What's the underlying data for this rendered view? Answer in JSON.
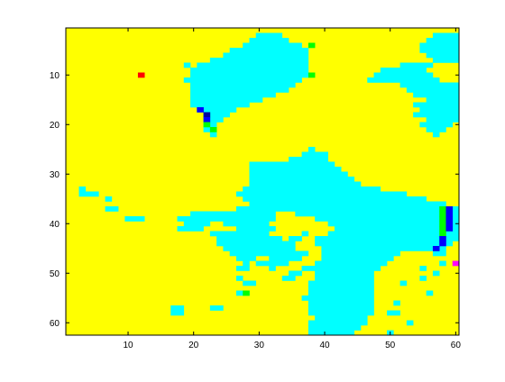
{
  "chart_data": {
    "type": "heatmap",
    "title": "",
    "xlabel": "",
    "ylabel": "",
    "xlim": [
      0.5,
      60.5
    ],
    "ylim": [
      0.5,
      62.5
    ],
    "y_direction": "reversed",
    "grid": false,
    "legend": "none",
    "x_ticks": [
      10,
      20,
      30,
      40,
      50,
      60
    ],
    "y_ticks": [
      10,
      20,
      30,
      40,
      50,
      60
    ],
    "x_tick_labels": [
      "10",
      "20",
      "30",
      "40",
      "50",
      "60"
    ],
    "y_tick_labels": [
      "10",
      "20",
      "30",
      "40",
      "50",
      "60"
    ],
    "colors": {
      "background": "#ffff00",
      "region": "#00ffff",
      "green": "#00ff00",
      "blue": "#0000ff",
      "darkblue": "#0000a0",
      "red": "#ff0000",
      "magenta": "#ff00ff",
      "frame": "#000000"
    },
    "base_value": "yellow",
    "region_value": "cyan",
    "region_rows": [
      {
        "y": 2,
        "runs": [
          [
            30,
            33
          ],
          [
            57,
            60
          ]
        ]
      },
      {
        "y": 3,
        "runs": [
          [
            29,
            34
          ],
          [
            56,
            60
          ]
        ]
      },
      {
        "y": 4,
        "runs": [
          [
            28,
            36
          ],
          [
            55,
            60
          ]
        ]
      },
      {
        "y": 5,
        "runs": [
          [
            26,
            37
          ],
          [
            55,
            60
          ]
        ]
      },
      {
        "y": 6,
        "runs": [
          [
            25,
            37
          ],
          [
            56,
            60
          ]
        ]
      },
      {
        "y": 7,
        "runs": [
          [
            23,
            37
          ],
          [
            57,
            60
          ]
        ]
      },
      {
        "y": 8,
        "runs": [
          [
            19,
            19
          ],
          [
            21,
            37
          ],
          [
            52,
            56
          ]
        ]
      },
      {
        "y": 9,
        "runs": [
          [
            20,
            37
          ],
          [
            49,
            55
          ]
        ]
      },
      {
        "y": 10,
        "runs": [
          [
            20,
            37
          ],
          [
            48,
            56
          ]
        ]
      },
      {
        "y": 11,
        "runs": [
          [
            19,
            36
          ],
          [
            47,
            57
          ]
        ]
      },
      {
        "y": 12,
        "runs": [
          [
            20,
            35
          ],
          [
            52,
            60
          ]
        ]
      },
      {
        "y": 13,
        "runs": [
          [
            20,
            34
          ],
          [
            53,
            60
          ]
        ]
      },
      {
        "y": 14,
        "runs": [
          [
            20,
            32
          ],
          [
            54,
            60
          ]
        ]
      },
      {
        "y": 15,
        "runs": [
          [
            20,
            30
          ],
          [
            56,
            60
          ]
        ]
      },
      {
        "y": 16,
        "runs": [
          [
            20,
            28
          ],
          [
            54,
            60
          ]
        ]
      },
      {
        "y": 17,
        "runs": [
          [
            21,
            26
          ],
          [
            55,
            60
          ]
        ]
      },
      {
        "y": 18,
        "runs": [
          [
            22,
            25
          ],
          [
            54,
            60
          ]
        ]
      },
      {
        "y": 19,
        "runs": [
          [
            22,
            24
          ],
          [
            56,
            60
          ]
        ]
      },
      {
        "y": 20,
        "runs": [
          [
            22,
            23
          ],
          [
            55,
            59
          ]
        ]
      },
      {
        "y": 21,
        "runs": [
          [
            22,
            23
          ],
          [
            56,
            58
          ]
        ]
      },
      {
        "y": 22,
        "runs": [
          [
            23,
            23
          ],
          [
            57,
            57
          ]
        ]
      },
      {
        "y": 25,
        "runs": [
          [
            38,
            38
          ]
        ]
      },
      {
        "y": 26,
        "runs": [
          [
            37,
            40
          ]
        ]
      },
      {
        "y": 27,
        "runs": [
          [
            35,
            40
          ]
        ]
      },
      {
        "y": 28,
        "runs": [
          [
            29,
            41
          ]
        ]
      },
      {
        "y": 29,
        "runs": [
          [
            29,
            42
          ]
        ]
      },
      {
        "y": 30,
        "runs": [
          [
            29,
            43
          ]
        ]
      },
      {
        "y": 31,
        "runs": [
          [
            29,
            44
          ]
        ]
      },
      {
        "y": 32,
        "runs": [
          [
            29,
            45
          ]
        ]
      },
      {
        "y": 33,
        "runs": [
          [
            3,
            3
          ],
          [
            28,
            48
          ]
        ]
      },
      {
        "y": 34,
        "runs": [
          [
            3,
            5
          ],
          [
            27,
            52
          ]
        ]
      },
      {
        "y": 35,
        "runs": [
          [
            7,
            7
          ],
          [
            28,
            55
          ]
        ]
      },
      {
        "y": 36,
        "runs": [
          [
            29,
            58
          ]
        ]
      },
      {
        "y": 37,
        "runs": [
          [
            7,
            8
          ],
          [
            27,
            60
          ]
        ]
      },
      {
        "y": 38,
        "runs": [
          [
            20,
            32
          ],
          [
            36,
            60
          ]
        ]
      },
      {
        "y": 39,
        "runs": [
          [
            10,
            12
          ],
          [
            18,
            32
          ],
          [
            39,
            60
          ]
        ]
      },
      {
        "y": 40,
        "runs": [
          [
            19,
            22
          ],
          [
            25,
            31
          ],
          [
            41,
            60
          ]
        ]
      },
      {
        "y": 41,
        "runs": [
          [
            18,
            21
          ],
          [
            27,
            32
          ],
          [
            42,
            60
          ]
        ]
      },
      {
        "y": 42,
        "runs": [
          [
            23,
            31
          ],
          [
            37,
            37
          ],
          [
            41,
            60
          ]
        ]
      },
      {
        "y": 43,
        "runs": [
          [
            24,
            33
          ],
          [
            35,
            36
          ],
          [
            39,
            60
          ]
        ]
      },
      {
        "y": 44,
        "runs": [
          [
            24,
            35
          ],
          [
            39,
            59
          ]
        ]
      },
      {
        "y": 45,
        "runs": [
          [
            25,
            35
          ],
          [
            40,
            58
          ]
        ]
      },
      {
        "y": 46,
        "runs": [
          [
            26,
            37
          ],
          [
            40,
            51
          ],
          [
            57,
            58
          ]
        ]
      },
      {
        "y": 47,
        "runs": [
          [
            27,
            29
          ],
          [
            32,
            36
          ],
          [
            40,
            50
          ]
        ]
      },
      {
        "y": 48,
        "runs": [
          [
            28,
            28
          ],
          [
            30,
            34
          ],
          [
            39,
            49
          ],
          [
            58,
            58
          ]
        ]
      },
      {
        "y": 49,
        "runs": [
          [
            27,
            28
          ],
          [
            32,
            32
          ],
          [
            37,
            38
          ],
          [
            39,
            48
          ],
          [
            55,
            55
          ]
        ]
      },
      {
        "y": 50,
        "runs": [
          [
            35,
            36
          ],
          [
            39,
            47
          ],
          [
            57,
            57
          ]
        ]
      },
      {
        "y": 51,
        "runs": [
          [
            27,
            27
          ],
          [
            34,
            35
          ],
          [
            39,
            47
          ],
          [
            55,
            55
          ]
        ]
      },
      {
        "y": 52,
        "runs": [
          [
            28,
            29
          ],
          [
            38,
            47
          ],
          [
            52,
            52
          ]
        ]
      },
      {
        "y": 53,
        "runs": [
          [
            38,
            47
          ]
        ]
      },
      {
        "y": 54,
        "runs": [
          [
            27,
            28
          ],
          [
            38,
            47
          ],
          [
            56,
            56
          ]
        ]
      },
      {
        "y": 55,
        "runs": [
          [
            37,
            47
          ]
        ]
      },
      {
        "y": 56,
        "runs": [
          [
            38,
            47
          ],
          [
            51,
            51
          ]
        ]
      },
      {
        "y": 57,
        "runs": [
          [
            17,
            18
          ],
          [
            23,
            24
          ],
          [
            38,
            47
          ]
        ]
      },
      {
        "y": 58,
        "runs": [
          [
            17,
            18
          ],
          [
            38,
            47
          ],
          [
            50,
            51
          ]
        ]
      },
      {
        "y": 59,
        "runs": [
          [
            39,
            46
          ]
        ]
      },
      {
        "y": 60,
        "runs": [
          [
            38,
            46
          ],
          [
            53,
            53
          ]
        ]
      },
      {
        "y": 61,
        "runs": [
          [
            38,
            45
          ]
        ]
      },
      {
        "y": 62,
        "runs": [
          [
            38,
            44
          ],
          [
            50,
            50
          ]
        ]
      }
    ],
    "special_cells": [
      {
        "x": 12,
        "y": 10,
        "value": "red"
      },
      {
        "x": 38,
        "y": 4,
        "value": "green"
      },
      {
        "x": 38,
        "y": 10,
        "value": "green"
      },
      {
        "x": 21,
        "y": 17,
        "value": "blue"
      },
      {
        "x": 22,
        "y": 18,
        "value": "darkblue"
      },
      {
        "x": 22,
        "y": 19,
        "value": "blue"
      },
      {
        "x": 22,
        "y": 20,
        "value": "green"
      },
      {
        "x": 23,
        "y": 21,
        "value": "green"
      },
      {
        "x": 28,
        "y": 54,
        "value": "green"
      },
      {
        "x": 58,
        "y": 37,
        "value": "green"
      },
      {
        "x": 58,
        "y": 38,
        "value": "green"
      },
      {
        "x": 58,
        "y": 39,
        "value": "green"
      },
      {
        "x": 58,
        "y": 40,
        "value": "green"
      },
      {
        "x": 58,
        "y": 41,
        "value": "green"
      },
      {
        "x": 58,
        "y": 42,
        "value": "green"
      },
      {
        "x": 59,
        "y": 37,
        "value": "blue"
      },
      {
        "x": 59,
        "y": 38,
        "value": "blue"
      },
      {
        "x": 59,
        "y": 39,
        "value": "blue"
      },
      {
        "x": 59,
        "y": 40,
        "value": "blue"
      },
      {
        "x": 59,
        "y": 41,
        "value": "blue"
      },
      {
        "x": 58,
        "y": 43,
        "value": "blue"
      },
      {
        "x": 58,
        "y": 44,
        "value": "blue"
      },
      {
        "x": 57,
        "y": 45,
        "value": "blue"
      },
      {
        "x": 60,
        "y": 48,
        "value": "magenta"
      }
    ]
  }
}
